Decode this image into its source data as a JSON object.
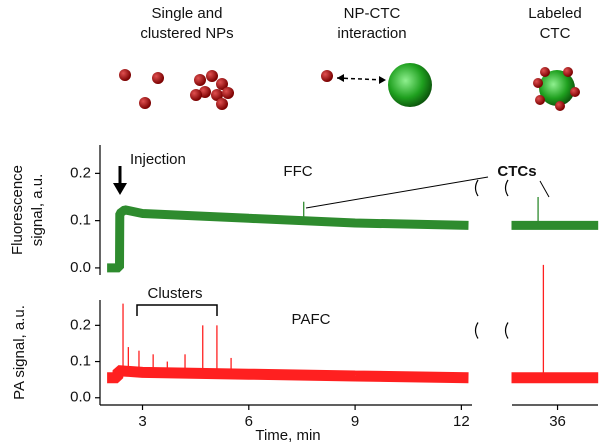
{
  "illustration": {
    "labels": [
      [
        "Single and",
        "clustered NPs"
      ],
      [
        "NP-CTC",
        "interaction"
      ],
      [
        "Labeled",
        "CTC"
      ]
    ]
  },
  "chart_data": [
    {
      "type": "line",
      "title": "FFC",
      "y_label": [
        "Fluorescence",
        "signal, a.u."
      ],
      "ylim": [
        -0.015,
        0.26
      ],
      "yticks": [
        {
          "value": 0,
          "label": "0.0"
        },
        0.1,
        0.2
      ],
      "xlim": [
        1.8,
        12.3
      ],
      "x2lim": [
        34.6,
        37.2
      ],
      "annotations": [
        "Injection",
        "CTCs"
      ],
      "series": [
        {
          "color": "#2e8b2e",
          "x": [
            2.0,
            2.35,
            2.36,
            2.5,
            3,
            6,
            9,
            12.2
          ],
          "values": [
            0,
            0,
            0.115,
            0.123,
            0.115,
            0.105,
            0.095,
            0.09
          ]
        },
        {
          "color": "#2e8b2e",
          "axis": "x2",
          "x": [
            34.7,
            37.15
          ],
          "values": [
            0.09,
            0.09
          ]
        },
        {
          "color": "#2e8b2e",
          "marker": "spike",
          "x": [
            7.55
          ],
          "values": [
            0.14
          ]
        },
        {
          "color": "#2e8b2e",
          "marker": "spike",
          "axis": "x2",
          "x": [
            35.45
          ],
          "values": [
            0.15
          ]
        }
      ]
    },
    {
      "type": "line",
      "title": "PAFC",
      "y_label": [
        "PA signal, a.u."
      ],
      "ylim": [
        -0.02,
        0.27
      ],
      "yticks": [
        {
          "value": 0,
          "label": "0.0"
        },
        0.1,
        0.2
      ],
      "xlim": [
        1.8,
        12.3
      ],
      "x2lim": [
        34.6,
        37.2
      ],
      "x_label": "Time, min",
      "xticks": [
        3,
        6,
        9,
        12
      ],
      "x2ticks": [
        36
      ],
      "annotations": [
        "Clusters"
      ],
      "series": [
        {
          "color": "#ff2020",
          "x": [
            2.0,
            2.3,
            2.31,
            3,
            6,
            9,
            12.2
          ],
          "values": [
            0.055,
            0.055,
            0.075,
            0.07,
            0.065,
            0.06,
            0.055
          ]
        },
        {
          "color": "#ff2020",
          "axis": "x2",
          "x": [
            34.7,
            37.15
          ],
          "values": [
            0.055,
            0.055
          ]
        },
        {
          "color": "#ff2020",
          "marker": "spike",
          "x": [
            2.45,
            2.6,
            2.9,
            3.3,
            3.7,
            4.2,
            4.7,
            5.1,
            5.5
          ],
          "values": [
            0.26,
            0.14,
            0.13,
            0.12,
            0.1,
            0.12,
            0.2,
            0.2,
            0.11
          ]
        },
        {
          "color": "#ff2020",
          "marker": "spike",
          "axis": "x2",
          "x": [
            35.6
          ],
          "values": [
            0.367
          ]
        }
      ]
    }
  ]
}
